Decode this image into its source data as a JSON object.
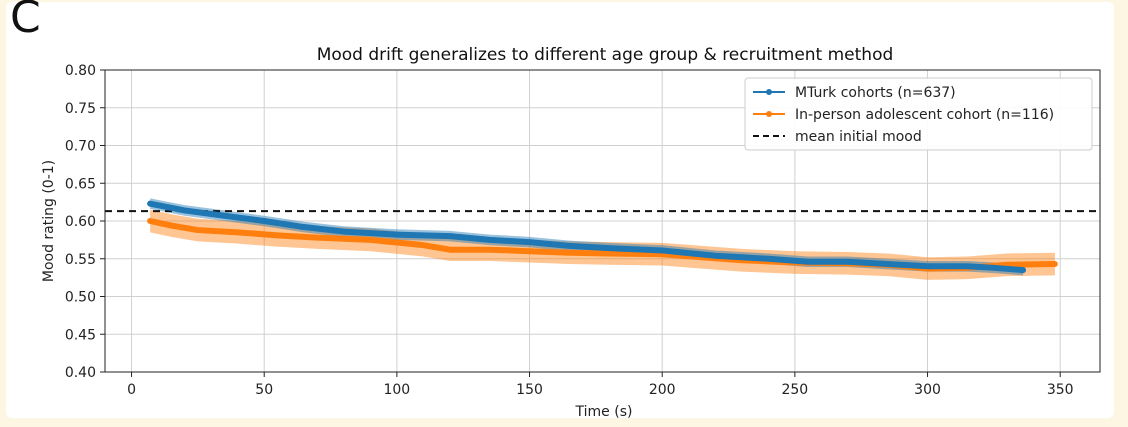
{
  "panel_letter": "C",
  "colors": {
    "mturk": "#1f77b4",
    "inperson": "#ff7f0e",
    "reference": "#111111",
    "grid": "#d0d0d0"
  },
  "chart_data": {
    "type": "line",
    "title": "Mood drift generalizes to different age group & recruitment method",
    "xlabel": "Time (s)",
    "ylabel": "Mood rating (0-1)",
    "xlim": [
      -10,
      365
    ],
    "ylim": [
      0.4,
      0.8
    ],
    "xticks": [
      0,
      50,
      100,
      150,
      200,
      250,
      300,
      350
    ],
    "yticks": [
      0.4,
      0.45,
      0.5,
      0.55,
      0.6,
      0.65,
      0.7,
      0.75,
      0.8
    ],
    "xtick_labels": [
      "0",
      "50",
      "100",
      "150",
      "200",
      "250",
      "300",
      "350"
    ],
    "ytick_labels": [
      "0.40",
      "0.45",
      "0.50",
      "0.55",
      "0.60",
      "0.65",
      "0.70",
      "0.75",
      "0.80"
    ],
    "grid": true,
    "legend_position": "top-right",
    "series": [
      {
        "name": "MTurk cohorts (n=637)",
        "color_key": "mturk",
        "marker": "dot",
        "x": [
          7,
          20,
          35,
          50,
          65,
          80,
          100,
          120,
          135,
          150,
          165,
          180,
          200,
          220,
          240,
          255,
          270,
          285,
          300,
          315,
          325,
          336
        ],
        "y": [
          0.623,
          0.614,
          0.607,
          0.6,
          0.592,
          0.586,
          0.582,
          0.58,
          0.575,
          0.572,
          0.567,
          0.564,
          0.561,
          0.554,
          0.55,
          0.546,
          0.546,
          0.543,
          0.54,
          0.54,
          0.538,
          0.535
        ],
        "ci": 0.007
      },
      {
        "name": "In-person adolescent cohort (n=116)",
        "color_key": "inperson",
        "marker": "dot",
        "x": [
          7,
          15,
          25,
          40,
          55,
          70,
          90,
          110,
          120,
          135,
          150,
          165,
          180,
          200,
          215,
          230,
          250,
          270,
          285,
          300,
          315,
          330,
          348
        ],
        "y": [
          0.6,
          0.594,
          0.588,
          0.585,
          0.581,
          0.578,
          0.575,
          0.568,
          0.562,
          0.562,
          0.56,
          0.558,
          0.557,
          0.556,
          0.552,
          0.548,
          0.545,
          0.544,
          0.542,
          0.537,
          0.538,
          0.542,
          0.543
        ],
        "ci": 0.015
      }
    ],
    "reference_line": {
      "name": "mean initial mood",
      "color_key": "reference",
      "y": 0.613,
      "style": "dashed"
    }
  }
}
